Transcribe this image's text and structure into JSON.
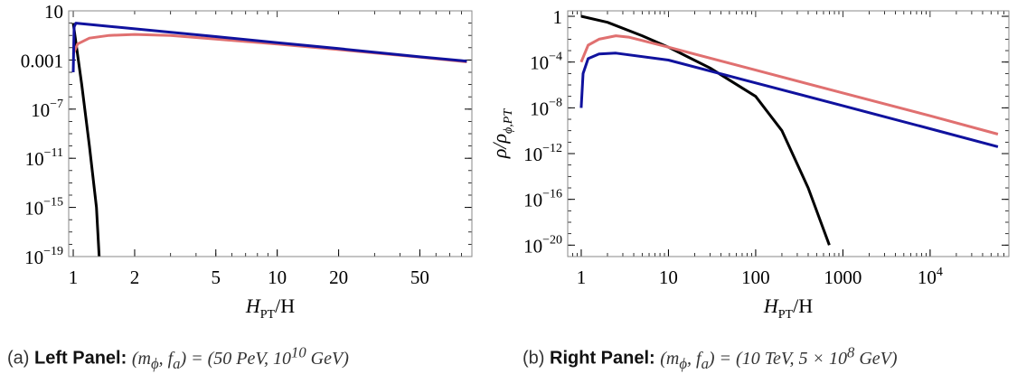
{
  "chart_data": [
    {
      "id": "left",
      "type": "line",
      "xscale": "log",
      "yscale": "log",
      "xlim": [
        0.95,
        90
      ],
      "ylim": [
        1e-19,
        10
      ],
      "xticks": [
        {
          "v": 1,
          "label": "1"
        },
        {
          "v": 2,
          "label": "2"
        },
        {
          "v": 5,
          "label": "5"
        },
        {
          "v": 10,
          "label": "10"
        },
        {
          "v": 20,
          "label": "20"
        },
        {
          "v": 50,
          "label": "50"
        }
      ],
      "yticks": [
        {
          "v": 10,
          "label": "10"
        },
        {
          "v": 0.001,
          "label": "0.001"
        },
        {
          "v": 1e-07,
          "label": "10",
          "sup": "−7"
        },
        {
          "v": 1e-11,
          "label": "10",
          "sup": "−11"
        },
        {
          "v": 1e-15,
          "label": "10",
          "sup": "−15"
        },
        {
          "v": 1e-19,
          "label": "10",
          "sup": "−19"
        }
      ],
      "xlabel": "H",
      "xlabel_sub": "PT",
      "xlabel_tail": "/H",
      "ylabel": "",
      "series": [
        {
          "color": "#000000",
          "x": [
            1.0,
            1.1,
            1.2,
            1.3,
            1.34
          ],
          "y": [
            1,
            1e-05,
            1e-10,
            1e-15,
            1e-19
          ]
        },
        {
          "color": "#e07070",
          "x": [
            1.0,
            1.05,
            1.2,
            1.5,
            2.0,
            3.0,
            5.0,
            10,
            20,
            50,
            85
          ],
          "y": [
            0.003,
            0.02,
            0.06,
            0.1,
            0.12,
            0.1,
            0.05,
            0.02,
            0.007,
            0.0017,
            0.0007
          ]
        },
        {
          "color": "#10129e",
          "x": [
            1.0,
            1.01,
            1.03,
            5,
            10,
            20,
            50,
            85
          ],
          "y": [
            0.0001,
            0.5,
            1.0,
            0.08,
            0.026,
            0.0085,
            0.0018,
            0.0008
          ]
        }
      ],
      "caption": {
        "prefix": "(a)",
        "bold": "Left Panel",
        "body": "(m",
        "sub1": "ϕ",
        "mid": ", f",
        "sub2": "a",
        "eq": ") = (50 PeV, 10",
        "sup": "10",
        "tail": " GeV)"
      }
    },
    {
      "id": "right",
      "type": "line",
      "xscale": "log",
      "yscale": "log",
      "xlim": [
        0.7,
        80000
      ],
      "ylim": [
        1e-21,
        3
      ],
      "xticks": [
        {
          "v": 1,
          "label": "1"
        },
        {
          "v": 10,
          "label": "10"
        },
        {
          "v": 100,
          "label": "100"
        },
        {
          "v": 1000,
          "label": "1000"
        },
        {
          "v": 10000,
          "label": "10",
          "sup": "4"
        }
      ],
      "yticks": [
        {
          "v": 1,
          "label": "1"
        },
        {
          "v": 0.0001,
          "label": "10",
          "sup": "−4"
        },
        {
          "v": 1e-08,
          "label": "10",
          "sup": "−8"
        },
        {
          "v": 1e-12,
          "label": "10",
          "sup": "−12"
        },
        {
          "v": 1e-16,
          "label": "10",
          "sup": "−16"
        },
        {
          "v": 1e-20,
          "label": "10",
          "sup": "−20"
        }
      ],
      "xlabel": "H",
      "xlabel_sub": "PT",
      "xlabel_tail": "/H",
      "ylabel": "ρ/ρ",
      "ylabel_sub": "ϕ,PT",
      "series": [
        {
          "color": "#000000",
          "x": [
            1,
            2,
            5,
            10,
            30,
            100,
            200,
            400,
            700
          ],
          "y": [
            1,
            0.3,
            0.02,
            0.002,
            3e-05,
            1e-07,
            1e-10,
            1e-15,
            1e-20
          ]
        },
        {
          "color": "#e07070",
          "x": [
            1,
            1.2,
            1.6,
            2.5,
            3.5,
            10,
            100,
            1000,
            10000,
            60000
          ],
          "y": [
            0.0001,
            0.003,
            0.01,
            0.02,
            0.015,
            0.002,
            2e-05,
            2e-07,
            2e-09,
            5e-11
          ]
        },
        {
          "color": "#10129e",
          "x": [
            1,
            1.05,
            1.2,
            1.6,
            2.5,
            10,
            100,
            1000,
            10000,
            60000
          ],
          "y": [
            1e-08,
            1e-05,
            0.0002,
            0.0005,
            0.0006,
            0.00015,
            1.5e-06,
            1.5e-08,
            1.5e-10,
            4e-12
          ]
        }
      ],
      "caption": {
        "prefix": "(b)",
        "bold": "Right Panel",
        "body": "(m",
        "sub1": "ϕ",
        "mid": ", f",
        "sub2": "a",
        "eq": ") = (10 TeV, 5 × 10",
        "sup": "8",
        "tail": " GeV)"
      }
    }
  ]
}
